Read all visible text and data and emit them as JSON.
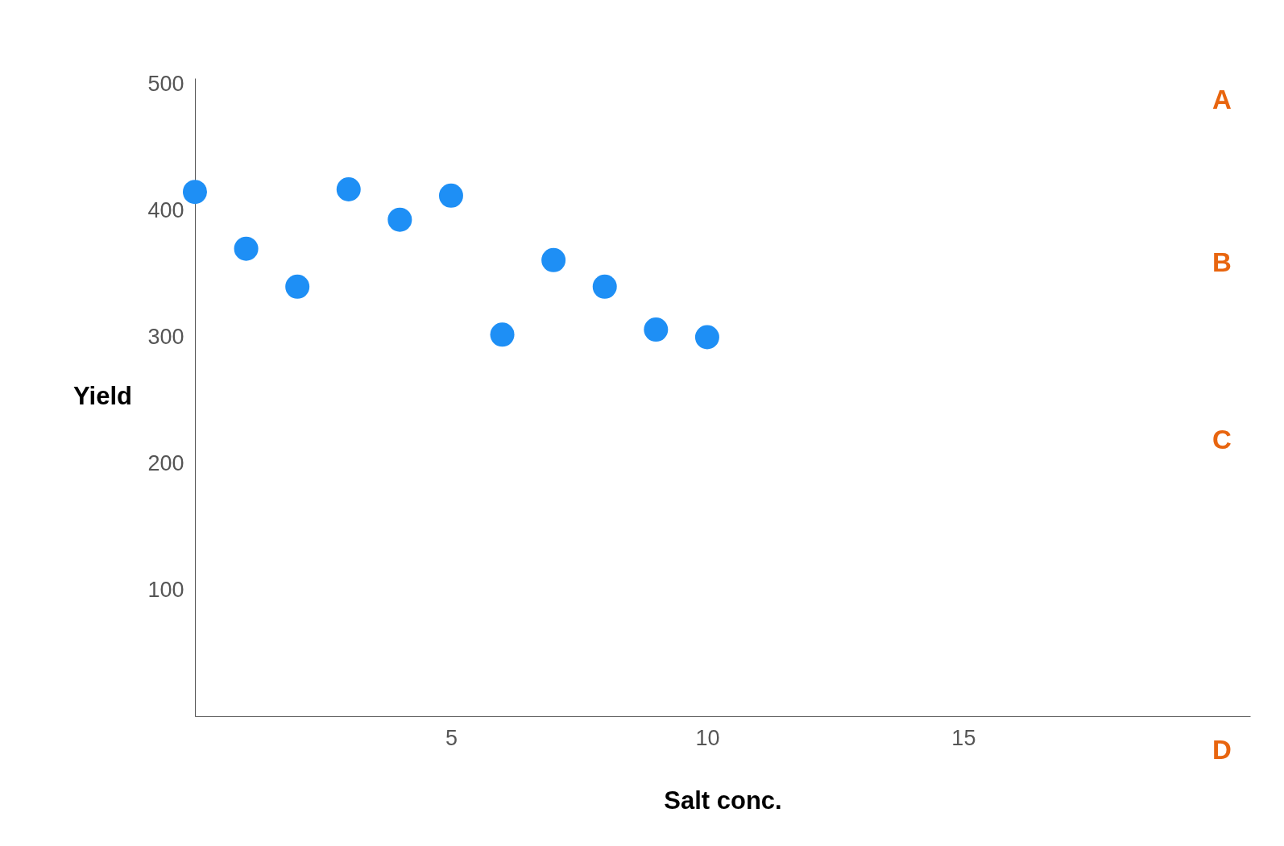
{
  "chart_data": {
    "type": "scatter",
    "xlabel": "Salt conc.",
    "ylabel": "Yield",
    "x": [
      0,
      1,
      2,
      3,
      4,
      5,
      6,
      7,
      8,
      9,
      10
    ],
    "series": [
      {
        "color": "#1e8ff5",
        "values": [
          415,
          370,
          340,
          417,
          393,
          412,
          302,
          361,
          340,
          306,
          300
        ]
      }
    ],
    "xlim": [
      0,
      20.6
    ],
    "ylim": [
      0,
      505
    ],
    "xticks": [
      5,
      10,
      15
    ],
    "yticks": [
      100,
      200,
      300,
      400,
      500
    ],
    "grid": false,
    "legend": false,
    "marker": "circle",
    "annotations": [
      "A",
      "B",
      "C",
      "D"
    ]
  }
}
